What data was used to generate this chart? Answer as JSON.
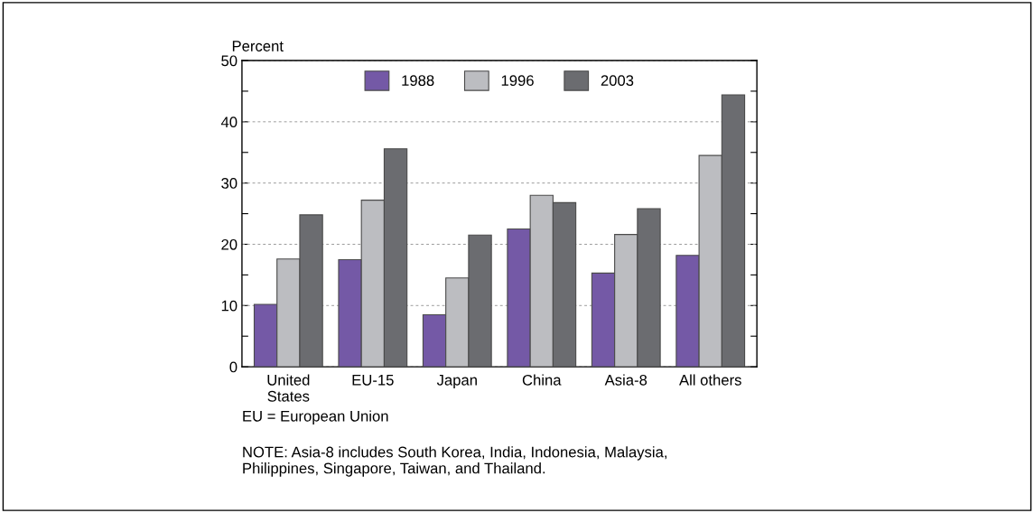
{
  "chart_data": {
    "type": "bar",
    "ylabel": "Percent",
    "categories": [
      "United\nStates",
      "EU-15",
      "Japan",
      "China",
      "Asia-8",
      "All others"
    ],
    "series": [
      {
        "name": "1988",
        "color": "#7459a6",
        "values": [
          10.2,
          17.5,
          8.5,
          22.5,
          15.3,
          18.2
        ]
      },
      {
        "name": "1996",
        "color": "#bcbdc1",
        "values": [
          17.6,
          27.2,
          14.5,
          28.0,
          21.6,
          34.5
        ]
      },
      {
        "name": "2003",
        "color": "#6b6c70",
        "values": [
          24.8,
          35.6,
          21.5,
          26.8,
          25.8,
          44.4
        ]
      }
    ],
    "ylim": [
      0,
      50
    ],
    "yticks": [
      0,
      {
        "value": 5,
        "label": null
      },
      10,
      {
        "value": 15,
        "label": null
      },
      20,
      {
        "value": 25,
        "label": null
      },
      30,
      {
        "value": 35,
        "label": null
      },
      40,
      {
        "value": 45,
        "label": null
      },
      50
    ],
    "grid": "y",
    "legend": "top",
    "annotations": [
      "EU = European Union",
      "NOTE: Asia-8 includes South Korea, India, Indonesia, Malaysia,\nPhilippines, Singapore, Taiwan, and Thailand."
    ]
  }
}
